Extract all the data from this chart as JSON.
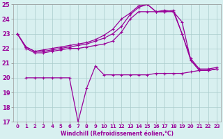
{
  "x": [
    0,
    1,
    2,
    3,
    4,
    5,
    6,
    7,
    8,
    9,
    10,
    11,
    12,
    13,
    14,
    15,
    16,
    17,
    18,
    19,
    20,
    21,
    22,
    23
  ],
  "line1": [
    23.0,
    22.0,
    21.7,
    21.7,
    21.8,
    21.9,
    22.0,
    22.0,
    22.1,
    22.2,
    22.3,
    22.5,
    23.1,
    24.0,
    24.5,
    24.5,
    24.5,
    24.5,
    24.6,
    23.0,
    21.2,
    20.5,
    20.5,
    20.6
  ],
  "line2": [
    23.0,
    22.1,
    21.8,
    21.8,
    21.9,
    22.0,
    22.1,
    22.2,
    22.3,
    22.5,
    22.7,
    23.0,
    23.5,
    24.3,
    24.8,
    25.0,
    24.5,
    24.5,
    24.5,
    23.8,
    21.2,
    20.5,
    20.5,
    20.6
  ],
  "line3": [
    23.0,
    22.1,
    21.8,
    21.9,
    22.0,
    22.1,
    22.2,
    22.3,
    22.4,
    22.6,
    22.9,
    23.3,
    24.0,
    24.4,
    24.9,
    25.0,
    24.5,
    24.6,
    24.5,
    23.0,
    21.3,
    20.6,
    20.6,
    20.7
  ],
  "line4": [
    null,
    20.0,
    20.0,
    20.0,
    20.0,
    20.0,
    20.0,
    17.0,
    19.3,
    20.8,
    20.2,
    20.2,
    20.2,
    20.2,
    20.2,
    20.2,
    20.3,
    20.3,
    20.3,
    20.3,
    20.4,
    20.5,
    20.5,
    20.6
  ],
  "line4_x_start": 1,
  "bg_color": "#d8f0f0",
  "line_color": "#990099",
  "grid_color": "#aacccc",
  "xlabel": "Windchill (Refroidissement éolien,°C)",
  "ylim": [
    17,
    25
  ],
  "xlim": [
    -0.5,
    23.5
  ],
  "yticks": [
    17,
    18,
    19,
    20,
    21,
    22,
    23,
    24,
    25
  ],
  "xticks": [
    0,
    1,
    2,
    3,
    4,
    5,
    6,
    7,
    8,
    9,
    10,
    11,
    12,
    13,
    14,
    15,
    16,
    17,
    18,
    19,
    20,
    21,
    22,
    23
  ]
}
